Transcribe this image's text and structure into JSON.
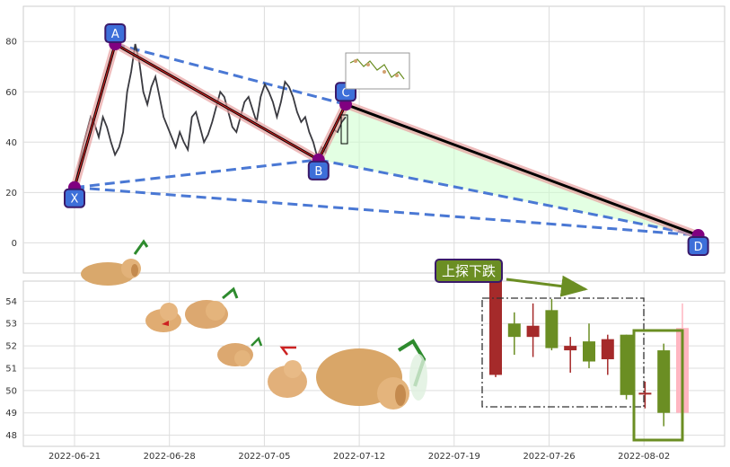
{
  "chart_data": [
    {
      "type": "line",
      "panel": "top",
      "x_ticks": [
        "2022-06-21",
        "2022-06-28",
        "2022-07-05",
        "2022-07-12",
        "2022-07-19",
        "2022-07-26",
        "2022-08-02"
      ],
      "y_ticks": [
        0,
        20,
        40,
        60,
        80
      ],
      "ylim": [
        -12,
        94
      ],
      "grid": true,
      "harmonic_points": [
        {
          "label": "X",
          "date": "2022-06-21",
          "value": 22
        },
        {
          "label": "A",
          "date": "2022-06-24",
          "value": 79
        },
        {
          "label": "B",
          "date": "2022-07-09",
          "value": 33
        },
        {
          "label": "C",
          "date": "2022-07-11",
          "value": 55
        },
        {
          "label": "D",
          "date": "2022-08-06",
          "value": 3
        }
      ],
      "price_series": {
        "start_date": "2022-06-21",
        "end_date": "2022-07-11",
        "values": [
          22,
          30,
          38,
          44,
          50,
          47,
          42,
          50,
          46,
          40,
          35,
          38,
          44,
          60,
          68,
          79,
          72,
          60,
          55,
          62,
          66,
          58,
          50,
          46,
          42,
          38,
          44,
          40,
          37,
          50,
          52,
          46,
          40,
          43,
          48,
          54,
          60,
          58,
          52,
          46,
          44,
          50,
          56,
          58,
          53,
          48,
          58,
          63,
          60,
          56,
          50,
          56,
          64,
          62,
          58,
          52,
          48,
          50,
          44,
          40,
          34,
          38,
          36,
          42,
          45,
          44,
          48,
          50
        ]
      }
    },
    {
      "type": "candlestick",
      "panel": "bottom",
      "y_ticks": [
        48,
        49,
        50,
        51,
        52,
        53,
        54
      ],
      "ylim": [
        47.5,
        54.9
      ],
      "annotation": "上探下跌",
      "candles": [
        {
          "date": "2022-07-21",
          "open": 55.1,
          "close": 50.7,
          "high": 55.2,
          "low": 50.6,
          "color": "#a52a2a"
        },
        {
          "date": "2022-07-22",
          "open": 52.4,
          "close": 53.0,
          "high": 53.5,
          "low": 51.6,
          "color": "#6b8e23"
        },
        {
          "date": "2022-07-23",
          "open": 52.9,
          "close": 52.4,
          "high": 53.9,
          "low": 51.5,
          "color": "#a52a2a"
        },
        {
          "date": "2022-07-24",
          "open": 51.9,
          "close": 53.6,
          "high": 54.1,
          "low": 51.8,
          "color": "#6b8e23"
        },
        {
          "date": "2022-07-25",
          "open": 52.0,
          "close": 51.8,
          "high": 52.4,
          "low": 50.8,
          "color": "#a52a2a"
        },
        {
          "date": "2022-07-26",
          "open": 51.3,
          "close": 52.2,
          "high": 53.0,
          "low": 51.0,
          "color": "#6b8e23"
        },
        {
          "date": "2022-07-27",
          "open": 52.3,
          "close": 51.4,
          "high": 52.5,
          "low": 50.7,
          "color": "#a52a2a"
        },
        {
          "date": "2022-07-28",
          "open": 49.8,
          "close": 52.5,
          "high": 52.5,
          "low": 49.6,
          "color": "#6b8e23"
        },
        {
          "date": "2022-07-29",
          "open": 49.9,
          "close": 49.9,
          "high": 50.4,
          "low": 49.2,
          "color": "#a52a2a"
        },
        {
          "date": "2022-07-30",
          "open": 49.0,
          "close": 51.8,
          "high": 52.1,
          "low": 48.4,
          "color": "#6b8e23"
        },
        {
          "date": "2022-07-31",
          "open": 49.0,
          "close": 52.8,
          "high": 53.9,
          "low": 48.6,
          "color": "#ffb6c1"
        }
      ]
    }
  ],
  "colors": {
    "grid": "#dddddd",
    "axis_text": "#333333",
    "pattern_line": "#000000",
    "pattern_glow": "#e8a0a0",
    "leg_xa_ab": "#cc2222",
    "dashed": "#4a78d4",
    "fill": "#ccffcc",
    "label_box": "#3d6fd9",
    "label_border": "#3a1a6a",
    "marker": "#800080",
    "annotation_bg": "#6b8e23",
    "arrow": "#6b8e23"
  }
}
